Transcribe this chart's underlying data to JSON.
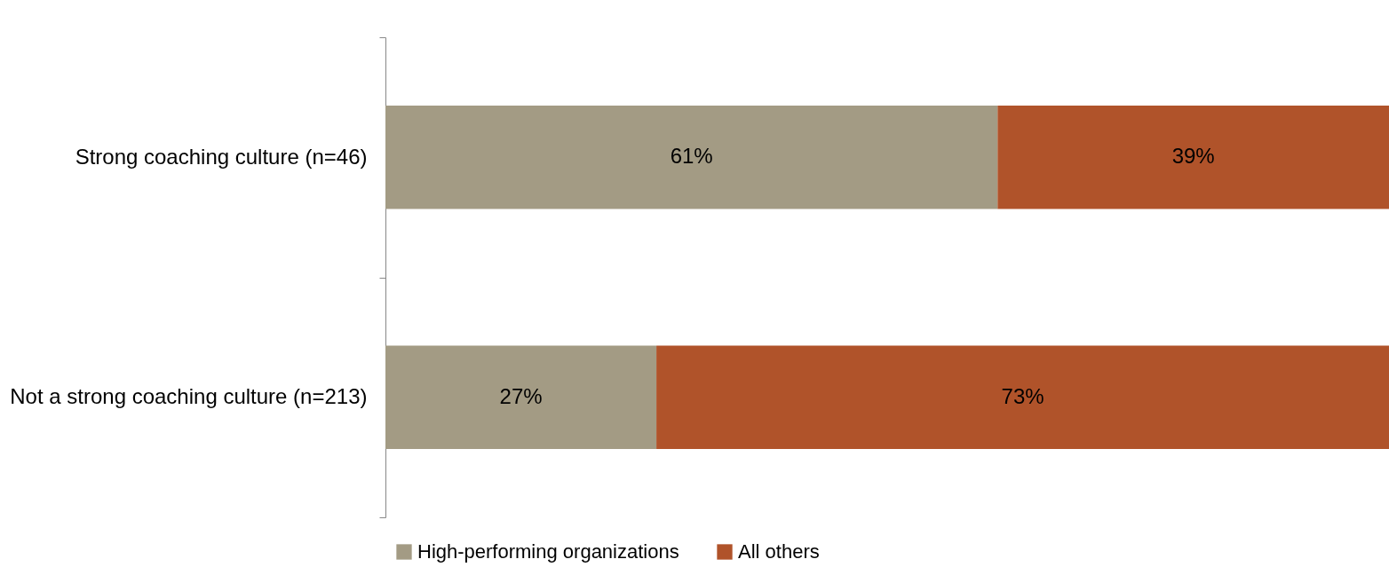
{
  "chart_data": {
    "type": "bar",
    "orientation": "horizontal",
    "stacked": true,
    "categories": [
      "Strong coaching culture (n=46)",
      "Not a strong coaching culture (n=213)"
    ],
    "series": [
      {
        "name": "High-performing organizations",
        "color": "#a39b84",
        "values": [
          61,
          27
        ],
        "value_labels": [
          "61%",
          "27%"
        ]
      },
      {
        "name": "All others",
        "color": "#b0532a",
        "values": [
          39,
          73
        ],
        "value_labels": [
          "39%",
          "73%"
        ]
      }
    ],
    "xlim": [
      0,
      100
    ],
    "tick_labels": "y",
    "legend": "bottom"
  }
}
